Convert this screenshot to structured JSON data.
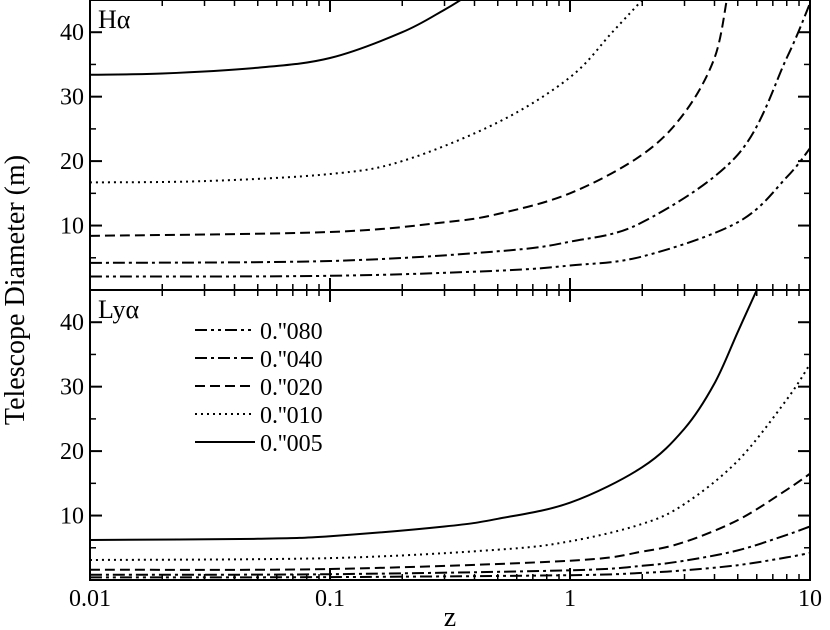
{
  "chart_data": {
    "type": "line",
    "ylabel": "Telescope Diameter (m)",
    "xlabel": "z",
    "x_scale": "log",
    "xlim": [
      0.01,
      10
    ],
    "x_ticks": [
      "0.01",
      "0.1",
      "1",
      "10"
    ],
    "legend": {
      "placement": "top-left of lower panel",
      "entries": [
        "0.''080",
        "0.''040",
        "0.''020",
        "0.''010",
        "0.''005"
      ]
    },
    "panels": [
      {
        "label": "Hα",
        "ylim": [
          0,
          45
        ],
        "y_ticks": [
          "10",
          "20",
          "30",
          "40"
        ],
        "series": [
          {
            "name": "0.''005",
            "dash": "solid",
            "points": [
              [
                0.01,
                33.4
              ],
              [
                0.02,
                33.6
              ],
              [
                0.05,
                34.5
              ],
              [
                0.1,
                36.0
              ],
              [
                0.2,
                40.0
              ],
              [
                0.3,
                43.5
              ],
              [
                0.35,
                45.0
              ]
            ]
          },
          {
            "name": "0.''010",
            "dash": "dotted",
            "points": [
              [
                0.01,
                16.7
              ],
              [
                0.03,
                16.9
              ],
              [
                0.1,
                18.0
              ],
              [
                0.2,
                20.0
              ],
              [
                0.5,
                26.0
              ],
              [
                1,
                33.0
              ],
              [
                1.5,
                40.0
              ],
              [
                2.0,
                45.0
              ]
            ]
          },
          {
            "name": "0.''020",
            "dash": "dashed",
            "points": [
              [
                0.01,
                8.4
              ],
              [
                0.1,
                9.0
              ],
              [
                0.3,
                10.5
              ],
              [
                0.5,
                11.8
              ],
              [
                1,
                15.0
              ],
              [
                2,
                21.0
              ],
              [
                3,
                27.5
              ],
              [
                4,
                36.0
              ],
              [
                4.5,
                45.0
              ]
            ]
          },
          {
            "name": "0.''040",
            "dash": "dashdot",
            "points": [
              [
                0.01,
                4.2
              ],
              [
                0.1,
                4.5
              ],
              [
                0.5,
                6.0
              ],
              [
                1,
                7.5
              ],
              [
                2,
                10.5
              ],
              [
                5,
                21.0
              ],
              [
                8,
                36.0
              ],
              [
                10,
                44.5
              ]
            ]
          },
          {
            "name": "0.''080",
            "dash": "dashdotdot",
            "points": [
              [
                0.01,
                2.1
              ],
              [
                0.1,
                2.2
              ],
              [
                0.5,
                3.0
              ],
              [
                1,
                3.8
              ],
              [
                2,
                5.2
              ],
              [
                5,
                10.5
              ],
              [
                8,
                17.5
              ],
              [
                10,
                22.0
              ]
            ]
          }
        ]
      },
      {
        "label": "Lyα",
        "ylim": [
          0,
          45
        ],
        "y_ticks": [
          "10",
          "20",
          "30",
          "40"
        ],
        "series": [
          {
            "name": "0.''005",
            "dash": "solid",
            "points": [
              [
                0.01,
                6.2
              ],
              [
                0.05,
                6.4
              ],
              [
                0.1,
                6.8
              ],
              [
                0.3,
                8.3
              ],
              [
                0.5,
                9.5
              ],
              [
                1,
                12.0
              ],
              [
                2,
                17.5
              ],
              [
                3,
                23.5
              ],
              [
                4,
                30.5
              ],
              [
                5,
                38.5
              ],
              [
                6,
                45.0
              ]
            ]
          },
          {
            "name": "0.''010",
            "dash": "dotted",
            "points": [
              [
                0.01,
                3.1
              ],
              [
                0.1,
                3.4
              ],
              [
                0.5,
                4.7
              ],
              [
                1,
                6.0
              ],
              [
                2,
                8.7
              ],
              [
                3,
                11.8
              ],
              [
                5,
                18.5
              ],
              [
                8,
                28.0
              ],
              [
                10,
                33.5
              ]
            ]
          },
          {
            "name": "0.''020",
            "dash": "dashed",
            "points": [
              [
                0.01,
                1.6
              ],
              [
                0.1,
                1.7
              ],
              [
                1,
                3.0
              ],
              [
                2,
                4.4
              ],
              [
                3,
                5.9
              ],
              [
                5,
                9.3
              ],
              [
                8,
                14.0
              ],
              [
                10,
                16.5
              ]
            ]
          },
          {
            "name": "0.''040",
            "dash": "dashdot",
            "points": [
              [
                0.01,
                0.8
              ],
              [
                0.1,
                0.9
              ],
              [
                1,
                1.5
              ],
              [
                2,
                2.2
              ],
              [
                3,
                3.0
              ],
              [
                5,
                4.6
              ],
              [
                8,
                7.0
              ],
              [
                10,
                8.3
              ]
            ]
          },
          {
            "name": "0.''080",
            "dash": "dashdotdot",
            "points": [
              [
                0.01,
                0.4
              ],
              [
                0.1,
                0.45
              ],
              [
                1,
                0.75
              ],
              [
                2,
                1.1
              ],
              [
                3,
                1.5
              ],
              [
                5,
                2.3
              ],
              [
                8,
                3.5
              ],
              [
                10,
                4.2
              ]
            ]
          }
        ]
      }
    ]
  }
}
